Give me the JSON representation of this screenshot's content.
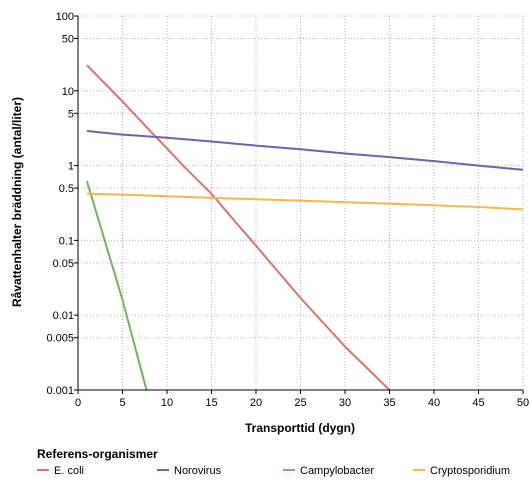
{
  "chart_data": {
    "type": "line",
    "xlabel": "Transporttid (dygn)",
    "ylabel": "Råvattenhalter bräddning (antal/liter)",
    "x_scale": "linear",
    "y_scale": "log",
    "xlim": [
      0,
      50
    ],
    "ylim": [
      0.001,
      100
    ],
    "x_ticks": [
      0,
      5,
      10,
      15,
      20,
      25,
      30,
      35,
      40,
      45,
      50
    ],
    "y_ticks": [
      0.001,
      0.005,
      0.01,
      0.05,
      0.1,
      0.5,
      1,
      5,
      10,
      50,
      100
    ],
    "y_tick_labels": [
      "0.001",
      "0.005",
      "0.01",
      "0.05",
      "0.1",
      "0.5",
      "1",
      "5",
      "10",
      "50",
      "100"
    ],
    "grid": true,
    "legend": {
      "title": "Referens-organismer",
      "placement": "bottom"
    },
    "series": [
      {
        "name": "E. coli",
        "color": "#d9736b",
        "x": [
          1,
          5,
          8,
          10,
          12,
          15,
          18,
          20,
          25,
          30,
          35
        ],
        "y": [
          22,
          7.2,
          3.0,
          1.7,
          0.95,
          0.42,
          0.16,
          0.085,
          0.017,
          0.0038,
          0.001
        ]
      },
      {
        "name": "Norovirus",
        "color": "#6666b3",
        "x": [
          1,
          5,
          10,
          15,
          20,
          25,
          30,
          35,
          40,
          45,
          50
        ],
        "y": [
          2.9,
          2.6,
          2.35,
          2.1,
          1.85,
          1.65,
          1.45,
          1.3,
          1.15,
          1.0,
          0.88
        ]
      },
      {
        "name": "Campylobacter",
        "color": "#6ab85a",
        "x": [
          1,
          3,
          5,
          7.7
        ],
        "y": [
          0.62,
          0.1,
          0.016,
          0.001
        ]
      },
      {
        "name": "Cryptosporidium",
        "color": "#f5b942",
        "x": [
          1,
          5,
          10,
          15,
          20,
          25,
          30,
          35,
          40,
          45,
          50
        ],
        "y": [
          0.42,
          0.41,
          0.39,
          0.37,
          0.355,
          0.34,
          0.325,
          0.31,
          0.295,
          0.28,
          0.26
        ]
      }
    ]
  }
}
